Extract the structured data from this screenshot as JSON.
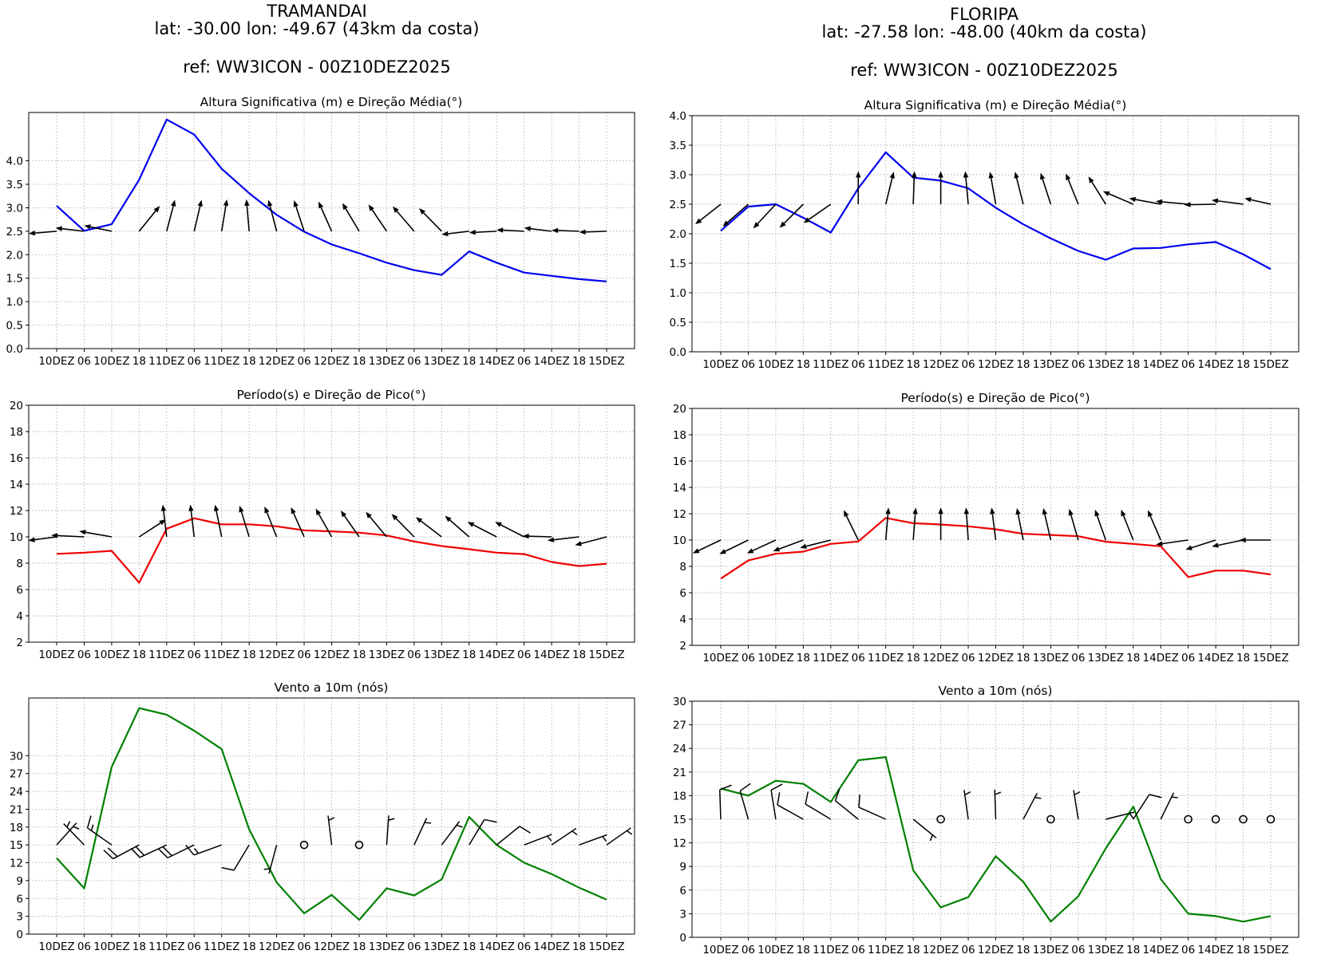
{
  "stations": [
    {
      "name": "TRAMANDAI",
      "coords": "lat: -30.00  lon: -49.67 (43km da costa)",
      "ref": "ref: WW3ICON - 00Z10DEZ2025"
    },
    {
      "name": "FLORIPA",
      "coords": "lat: -27.58  lon: -48.00 (40km da costa)",
      "ref": "ref: WW3ICON - 00Z10DEZ2025"
    }
  ],
  "time_axis_labels": [
    "10DEZ",
    "06",
    "10DEZ",
    "18",
    "11DEZ",
    "06",
    "11DEZ",
    "18",
    "12DEZ",
    "06",
    "12DEZ",
    "18",
    "13DEZ",
    "06",
    "13DEZ",
    "18",
    "14DEZ",
    "06",
    "14DEZ",
    "18",
    "15DEZ"
  ],
  "chart_data": [
    {
      "type": "line",
      "station": "TRAMANDAI",
      "title": "Altura Significativa (m) e Direção Média(°)",
      "xlabel": "",
      "ylabel": "",
      "ylim": [
        0,
        5.03
      ],
      "grid": true,
      "yticks": [
        0,
        0.5,
        1,
        1.5,
        2,
        2.5,
        3,
        3.5,
        4
      ],
      "ytick_labels": [
        "0.0",
        "0.5",
        "1.0",
        "1.5",
        "2.0",
        "2.5",
        "3.0",
        "3.5",
        "4.0"
      ],
      "series": [
        {
          "name": "Hs",
          "color": "#0000ee",
          "values": [
            3.04,
            2.51,
            2.65,
            3.6,
            4.88,
            4.56,
            3.83,
            3.31,
            2.85,
            2.49,
            2.22,
            2.03,
            1.83,
            1.67,
            1.57,
            2.07,
            1.83,
            1.62,
            1.55,
            1.48,
            1.43
          ]
        }
      ],
      "arrow_base": 2.5,
      "arrows": [
        [
          -1.02,
          -0.05
        ],
        [
          -1.04,
          0.07
        ],
        [
          -1.0,
          0.12
        ],
        [
          0.75,
          0.54
        ],
        [
          0.3,
          0.67
        ],
        [
          0.27,
          0.67
        ],
        [
          0.19,
          0.68
        ],
        [
          -0.1,
          0.68
        ],
        [
          -0.3,
          0.67
        ],
        [
          -0.37,
          0.66
        ],
        [
          -0.48,
          0.63
        ],
        [
          -0.61,
          0.6
        ],
        [
          -0.66,
          0.57
        ],
        [
          -0.78,
          0.53
        ],
        [
          -0.82,
          0.49
        ],
        [
          -1.0,
          -0.07
        ],
        [
          -1.0,
          -0.03
        ],
        [
          -1.0,
          0.03
        ],
        [
          -1.0,
          0.07
        ],
        [
          -1.0,
          0.02
        ],
        [
          -1.0,
          -0.02
        ]
      ]
    },
    {
      "type": "line",
      "station": "FLORIPA",
      "title": "Altura Significativa (m) e Direção Média(°)",
      "xlabel": "",
      "ylabel": "",
      "ylim": [
        0,
        4
      ],
      "grid": true,
      "yticks": [
        0,
        0.5,
        1,
        1.5,
        2,
        2.5,
        3,
        3.5,
        4
      ],
      "ytick_labels": [
        "0.0",
        "0.5",
        "1.0",
        "1.5",
        "2.0",
        "2.5",
        "3.0",
        "3.5",
        "4.0"
      ],
      "series": [
        {
          "name": "Hs",
          "color": "#0000ee",
          "values": [
            2.05,
            2.46,
            2.5,
            2.27,
            2.02,
            2.77,
            3.38,
            2.95,
            2.9,
            2.77,
            2.44,
            2.16,
            1.92,
            1.71,
            1.56,
            1.75,
            1.76,
            1.82,
            1.86,
            1.65,
            1.4
          ]
        }
      ],
      "arrow_base": 2.5,
      "arrows": [
        [
          -0.93,
          -0.34
        ],
        [
          -0.93,
          -0.38
        ],
        [
          -0.82,
          -0.41
        ],
        [
          -0.86,
          -0.4
        ],
        [
          -0.99,
          -0.32
        ],
        [
          0,
          0.56
        ],
        [
          0.29,
          0.55
        ],
        [
          0.04,
          0.56
        ],
        [
          0,
          0.56
        ],
        [
          -0.11,
          0.56
        ],
        [
          -0.21,
          0.55
        ],
        [
          -0.3,
          0.55
        ],
        [
          -0.37,
          0.53
        ],
        [
          -0.45,
          0.52
        ],
        [
          -0.63,
          0.47
        ],
        [
          -1.1,
          0.22
        ],
        [
          -1.15,
          0.1
        ],
        [
          -1.18,
          0.05
        ],
        [
          -1.15,
          -0.01
        ],
        [
          -1.15,
          0.07
        ],
        [
          -0.95,
          0.1
        ]
      ]
    },
    {
      "type": "line",
      "station": "TRAMANDAI",
      "title": "Período(s) e Direção de Pico(°)",
      "xlabel": "",
      "ylabel": "",
      "ylim": [
        2,
        20
      ],
      "grid": true,
      "yticks": [
        2,
        4,
        6,
        8,
        10,
        12,
        14,
        16,
        18,
        20
      ],
      "ytick_labels": [
        "2",
        "4",
        "6",
        "8",
        "10",
        "12",
        "14",
        "16",
        "18",
        "20"
      ],
      "series": [
        {
          "name": "Tp",
          "color": "#ee0000",
          "values": [
            8.71,
            8.8,
            8.94,
            6.52,
            10.62,
            11.41,
            10.95,
            10.95,
            10.8,
            10.5,
            10.42,
            10.32,
            10.11,
            9.65,
            9.3,
            9.06,
            8.8,
            8.69,
            8.09,
            7.78,
            7.96
          ]
        }
      ],
      "arrow_base": 10,
      "arrows": [
        [
          -1.03,
          -0.28
        ],
        [
          -1.2,
          0.12
        ],
        [
          -1.18,
          0.43
        ],
        [
          0.97,
          1.32
        ],
        [
          -0.14,
          2.45
        ],
        [
          -0.14,
          2.45
        ],
        [
          -0.24,
          2.45
        ],
        [
          -0.35,
          2.37
        ],
        [
          -0.44,
          2.31
        ],
        [
          -0.48,
          2.25
        ],
        [
          -0.58,
          2.15
        ],
        [
          -0.67,
          2.0
        ],
        [
          -0.76,
          1.9
        ],
        [
          -0.82,
          1.74
        ],
        [
          -0.94,
          1.5
        ],
        [
          -0.88,
          1.6
        ],
        [
          -1.06,
          1.14
        ],
        [
          -1.06,
          1.14
        ],
        [
          -1.06,
          0.06
        ],
        [
          -1.15,
          -0.28
        ],
        [
          -1.15,
          -0.63
        ]
      ]
    },
    {
      "type": "line",
      "station": "FLORIPA",
      "title": "Período(s) e Direção de Pico(°)",
      "xlabel": "",
      "ylabel": "",
      "ylim": [
        2,
        20
      ],
      "grid": true,
      "yticks": [
        2,
        4,
        6,
        8,
        10,
        12,
        14,
        16,
        18,
        20
      ],
      "ytick_labels": [
        "2",
        "4",
        "6",
        "8",
        "10",
        "12",
        "14",
        "16",
        "18",
        "20"
      ],
      "series": [
        {
          "name": "Tp",
          "color": "#ee0000",
          "values": [
            7.07,
            8.45,
            8.96,
            9.12,
            9.71,
            9.89,
            11.68,
            11.28,
            11.18,
            11.04,
            10.82,
            10.47,
            10.39,
            10.29,
            9.87,
            9.71,
            9.53,
            7.19,
            7.68,
            7.68,
            7.39
          ]
        }
      ],
      "arrow_base": 10,
      "arrows": [
        [
          -1.02,
          -1.01
        ],
        [
          -1.05,
          -1.07
        ],
        [
          -1.05,
          -1.01
        ],
        [
          -1.1,
          -0.85
        ],
        [
          -1.12,
          -0.59
        ],
        [
          -0.53,
          2.27
        ],
        [
          0.1,
          2.47
        ],
        [
          0.09,
          2.47
        ],
        [
          0,
          2.47
        ],
        [
          -0.08,
          2.47
        ],
        [
          -0.15,
          2.47
        ],
        [
          -0.23,
          2.43
        ],
        [
          -0.27,
          2.43
        ],
        [
          -0.33,
          2.37
        ],
        [
          -0.39,
          2.31
        ],
        [
          -0.44,
          2.31
        ],
        [
          -0.47,
          2.27
        ],
        [
          -1.17,
          -0.34
        ],
        [
          -1.1,
          -0.73
        ],
        [
          -1.14,
          -0.49
        ],
        [
          -1.14,
          0
        ]
      ]
    },
    {
      "type": "line",
      "station": "TRAMANDAI",
      "title": "Vento a 10m (nós)",
      "xlabel": "",
      "ylabel": "",
      "ylim": [
        0,
        39.7
      ],
      "grid": true,
      "yticks": [
        0,
        3,
        6,
        9,
        12,
        15,
        18,
        21,
        24,
        27,
        30
      ],
      "ytick_labels": [
        "0",
        "3",
        "6",
        "9",
        "12",
        "15",
        "18",
        "21",
        "24",
        "27",
        "30"
      ],
      "series": [
        {
          "name": "Vento",
          "color": "#008000",
          "values": [
            12.8,
            7.7,
            28.1,
            38.0,
            36.9,
            34.2,
            31.1,
            17.6,
            8.7,
            3.5,
            6.6,
            2.4,
            7.7,
            6.5,
            9.2,
            19.7,
            15.0,
            12.0,
            10.1,
            7.8,
            5.8
          ]
        }
      ],
      "barb_base": 15,
      "barb_dir_deg": [
        48,
        134,
        145,
        208,
        205,
        206,
        200,
        239,
        255,
        null,
        97,
        null,
        86,
        65,
        53,
        59,
        39,
        21,
        34,
        20,
        35
      ]
    },
    {
      "type": "line",
      "station": "FLORIPA",
      "title": "Vento a 10m (nós)",
      "xlabel": "",
      "ylabel": "",
      "ylim": [
        0,
        30
      ],
      "grid": true,
      "yticks": [
        0,
        3,
        6,
        9,
        12,
        15,
        18,
        21,
        24,
        27,
        30
      ],
      "ytick_labels": [
        "0",
        "3",
        "6",
        "9",
        "12",
        "15",
        "18",
        "21",
        "24",
        "27",
        "30"
      ],
      "series": [
        {
          "name": "Vento",
          "color": "#008000",
          "values": [
            18.9,
            18.0,
            19.9,
            19.5,
            17.2,
            22.5,
            22.9,
            8.5,
            3.8,
            5.1,
            10.3,
            7.05,
            2.0,
            5.2,
            11.3,
            16.6,
            7.4,
            3.0,
            2.7,
            2.0,
            2.7
          ]
        }
      ],
      "barb_base": 15,
      "barb_dir_deg": [
        92,
        106,
        99,
        151,
        149,
        141,
        156,
        321,
        null,
        98,
        92,
        62,
        null,
        99,
        14,
        57,
        64,
        null,
        null,
        null,
        null
      ]
    }
  ]
}
